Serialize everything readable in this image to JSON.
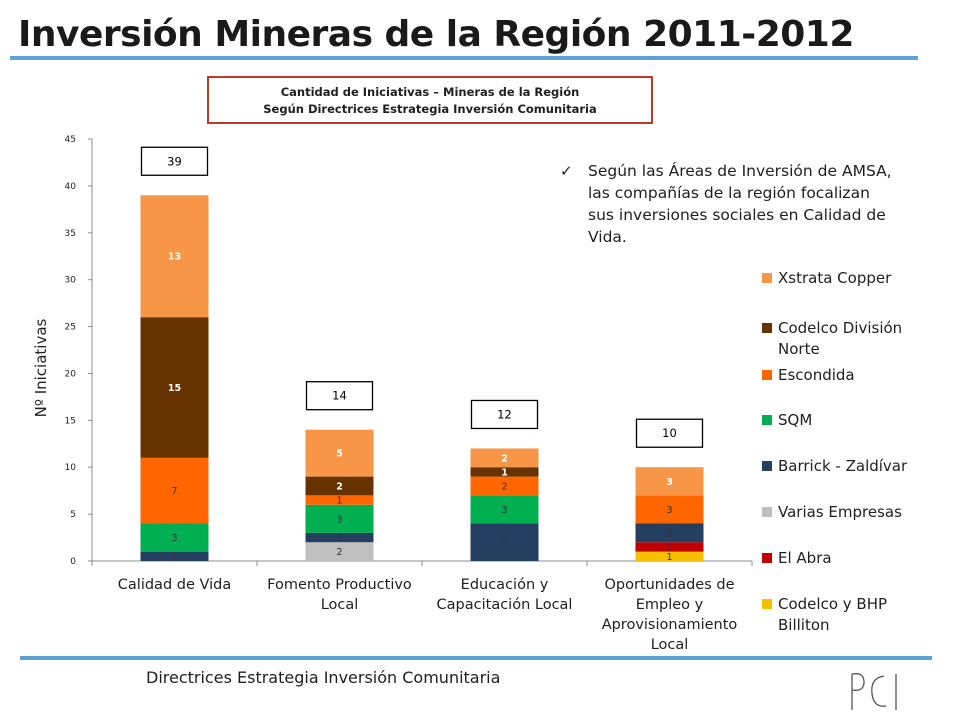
{
  "slide": {
    "title": "Inversión Mineras de la Región 2011-2012",
    "subtitle_line1": "Cantidad de Iniciativas – Mineras de la Región",
    "subtitle_line2": "Según Directrices Estrategia Inversión Comunitaria",
    "footer": "Directrices Estrategia Inversión Comunitaria",
    "note": "Según las Áreas de Inversión de AMSA, las compañías de la región focalizan sus inversiones sociales en Calidad de Vida.",
    "logo_text": "PCI",
    "accent_color": "#5ba3d6",
    "box_border_color": "#c0392b"
  },
  "chart_data": {
    "type": "bar",
    "stacked": true,
    "categories": [
      "Calidad de Vida",
      "Fomento Productivo Local",
      "Educación y Capacitación Local",
      "Oportunidades de Empleo y Aprovisionamiento Local"
    ],
    "category_lines": [
      [
        "Calidad de Vida"
      ],
      [
        "Fomento Productivo",
        "Local"
      ],
      [
        "Educación y",
        "Capacitación Local"
      ],
      [
        "Oportunidades de",
        "Empleo y",
        "Aprovisionamiento",
        "Local"
      ]
    ],
    "ylabel": "Nº Iniciativas",
    "ylim": [
      0,
      45
    ],
    "yticks": [
      0,
      5,
      10,
      15,
      20,
      25,
      30,
      35,
      40,
      45
    ],
    "totals": [
      39,
      14,
      12,
      10
    ],
    "series": [
      {
        "name": "Codelco y BHP Billiton",
        "color": "#f5c000",
        "values": [
          0,
          0,
          0,
          1
        ],
        "label_color": "#333333"
      },
      {
        "name": "El Abra",
        "color": "#c00000",
        "values": [
          0,
          0,
          0,
          1
        ],
        "label_color": "#333333"
      },
      {
        "name": "Varias Empresas",
        "color": "#bfbfbf",
        "values": [
          0,
          2,
          0,
          0
        ],
        "label_color": "#333333"
      },
      {
        "name": "Barrick - Zaldívar",
        "color": "#243f60",
        "values": [
          1,
          1,
          4,
          2
        ],
        "label_color": "#333333"
      },
      {
        "name": "SQM",
        "color": "#00b050",
        "values": [
          3,
          3,
          3,
          0
        ],
        "label_color": "#333333"
      },
      {
        "name": "Escondida",
        "color": "#ff6600",
        "values": [
          7,
          1,
          2,
          3
        ],
        "label_color": "#333333"
      },
      {
        "name": "Codelco División Norte",
        "color": "#663300",
        "values": [
          15,
          2,
          1,
          0
        ],
        "label_color": "#ffffff"
      },
      {
        "name": "Xstrata Copper",
        "color": "#f79646",
        "values": [
          13,
          5,
          2,
          3
        ],
        "label_color": "#ffffff"
      }
    ],
    "legend": [
      "Xstrata Copper",
      "Codelco División Norte",
      "Escondida",
      "SQM",
      "Barrick - Zaldívar",
      "Varias Empresas",
      "El Abra",
      "Codelco y BHP Billiton"
    ],
    "legend_lines": [
      [
        "Xstrata Copper"
      ],
      [
        "Codelco División",
        "Norte"
      ],
      [
        "Escondida"
      ],
      [
        "SQM"
      ],
      [
        "Barrick - Zaldívar"
      ],
      [
        "Varias Empresas"
      ],
      [
        "El Abra"
      ],
      [
        "Codelco y BHP",
        "Billiton"
      ]
    ],
    "legend_colors": [
      "#f79646",
      "#663300",
      "#ff6600",
      "#00b050",
      "#243f60",
      "#bfbfbf",
      "#c00000",
      "#f5c000"
    ],
    "legend_position": "right",
    "grid": false
  }
}
